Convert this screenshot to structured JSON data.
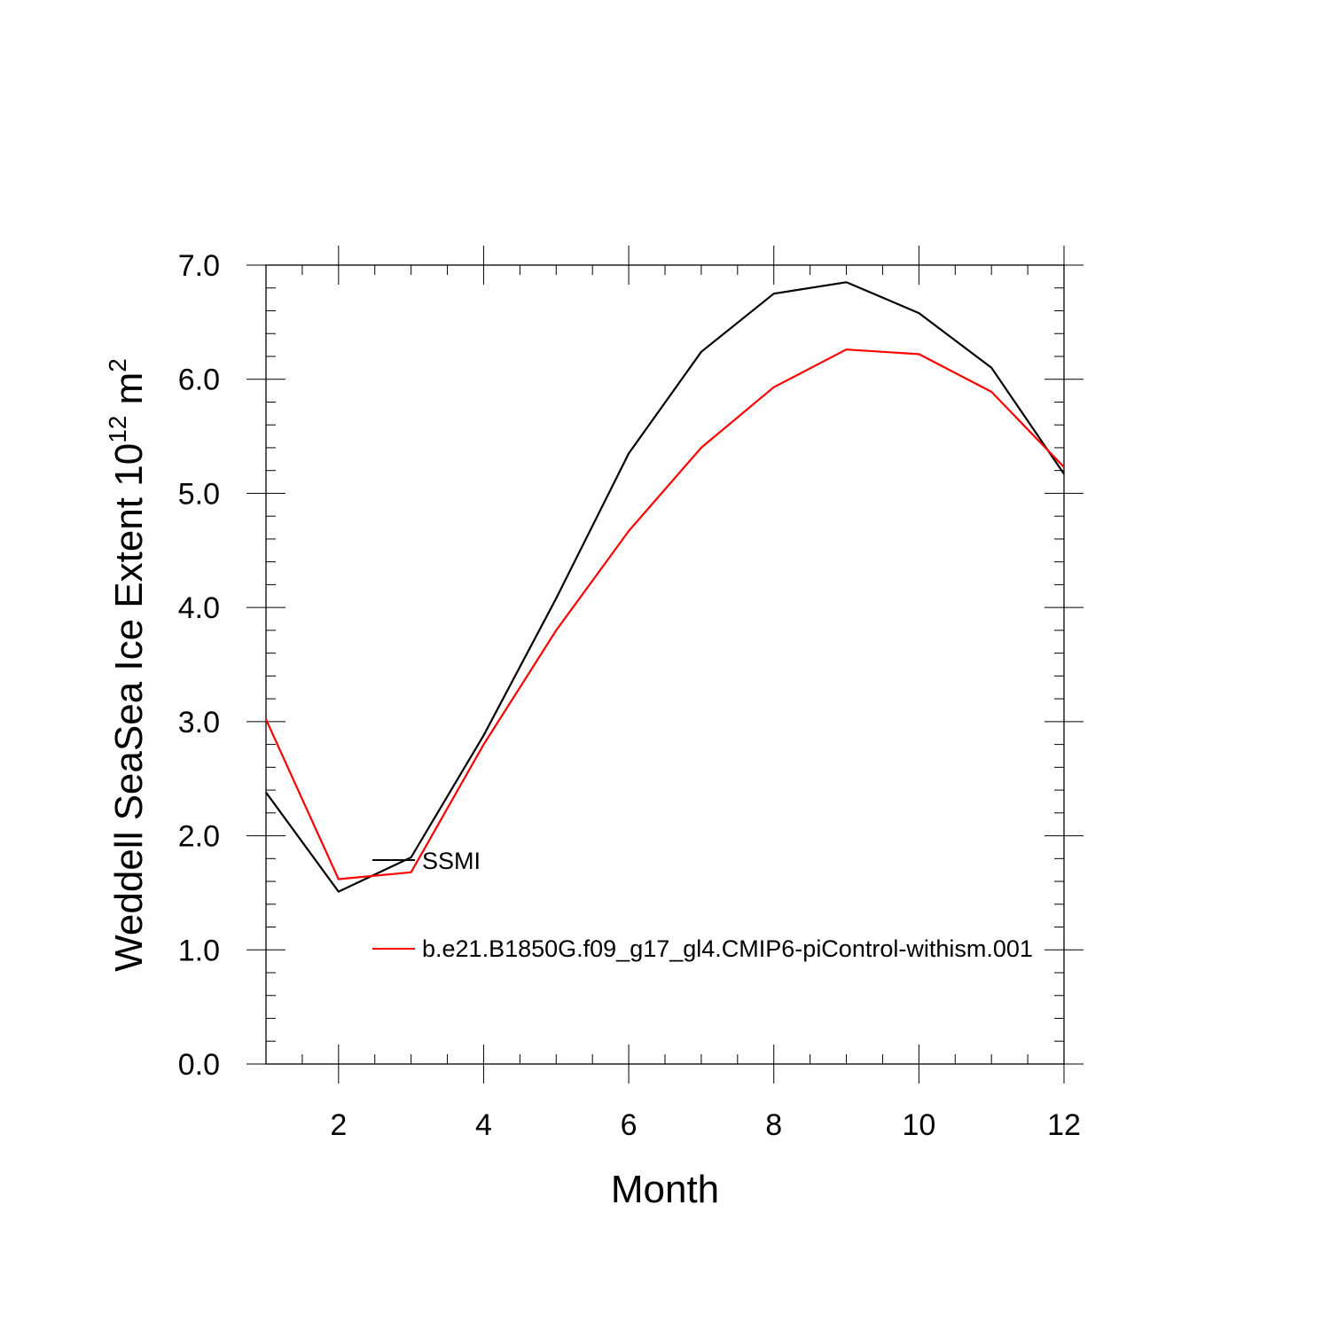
{
  "chart_data": {
    "type": "line",
    "xlabel": "Month",
    "ylabel": {
      "text": "Weddell SeaSea Ice Extent 10",
      "superscript": "12",
      "unit": " m",
      "unit_superscript": "2"
    },
    "xlim": [
      1,
      12
    ],
    "ylim": [
      0,
      7
    ],
    "x_ticks": [
      2,
      4,
      6,
      8,
      10,
      12
    ],
    "y_ticks": [
      "0.0",
      "1.0",
      "2.0",
      "3.0",
      "4.0",
      "5.0",
      "6.0",
      "7.0"
    ],
    "grid": false,
    "legend_placement": "inside-left",
    "x": [
      1,
      2,
      3,
      4,
      5,
      6,
      7,
      8,
      9,
      10,
      11,
      12
    ],
    "series": [
      {
        "name": "SSMI",
        "color": "#000000",
        "values": [
          2.38,
          1.51,
          1.81,
          2.88,
          4.08,
          5.35,
          6.24,
          6.75,
          6.85,
          6.58,
          6.1,
          5.17
        ]
      },
      {
        "name": "b.e21.B1850G.f09_g17_gl4.CMIP6-piControl-withism.001",
        "color": "#ff0000",
        "values": [
          3.02,
          1.62,
          1.68,
          2.8,
          3.8,
          4.67,
          5.4,
          5.93,
          6.26,
          6.22,
          5.89,
          5.23
        ]
      }
    ]
  }
}
